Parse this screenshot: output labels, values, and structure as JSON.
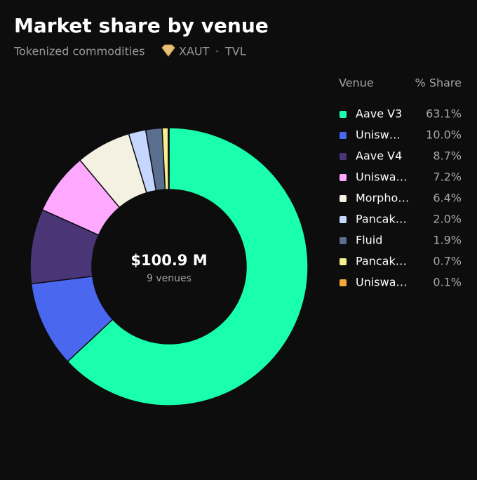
{
  "chart_data": {
    "type": "pie",
    "title": "Market share by venue",
    "subtitle_parts": [
      "Tokenized commodities",
      "XAUT",
      "·",
      "TVL"
    ],
    "center_value": "$100.9 M",
    "center_caption": "9 venues",
    "legend_headers": [
      "Venue",
      "% Share"
    ],
    "categories": [
      "Aave V3",
      "Unisw…",
      "Aave V4",
      "Uniswa…",
      "Morpho…",
      "Pancak…",
      "Fluid",
      "Pancak…",
      "Uniswa…"
    ],
    "values": [
      63.1,
      10.0,
      8.7,
      7.2,
      6.4,
      2.0,
      1.9,
      0.7,
      0.1
    ],
    "value_labels": [
      "63.1%",
      "10.0%",
      "8.7%",
      "7.2%",
      "6.4%",
      "2.0%",
      "1.9%",
      "0.7%",
      "0.1%"
    ],
    "colors": [
      "#19ffad",
      "#4a67f0",
      "#4a3576",
      "#ffa8ff",
      "#f4f0e2",
      "#c6d7ff",
      "#5a6e8f",
      "#f6ee8f",
      "#f6a83d"
    ]
  }
}
